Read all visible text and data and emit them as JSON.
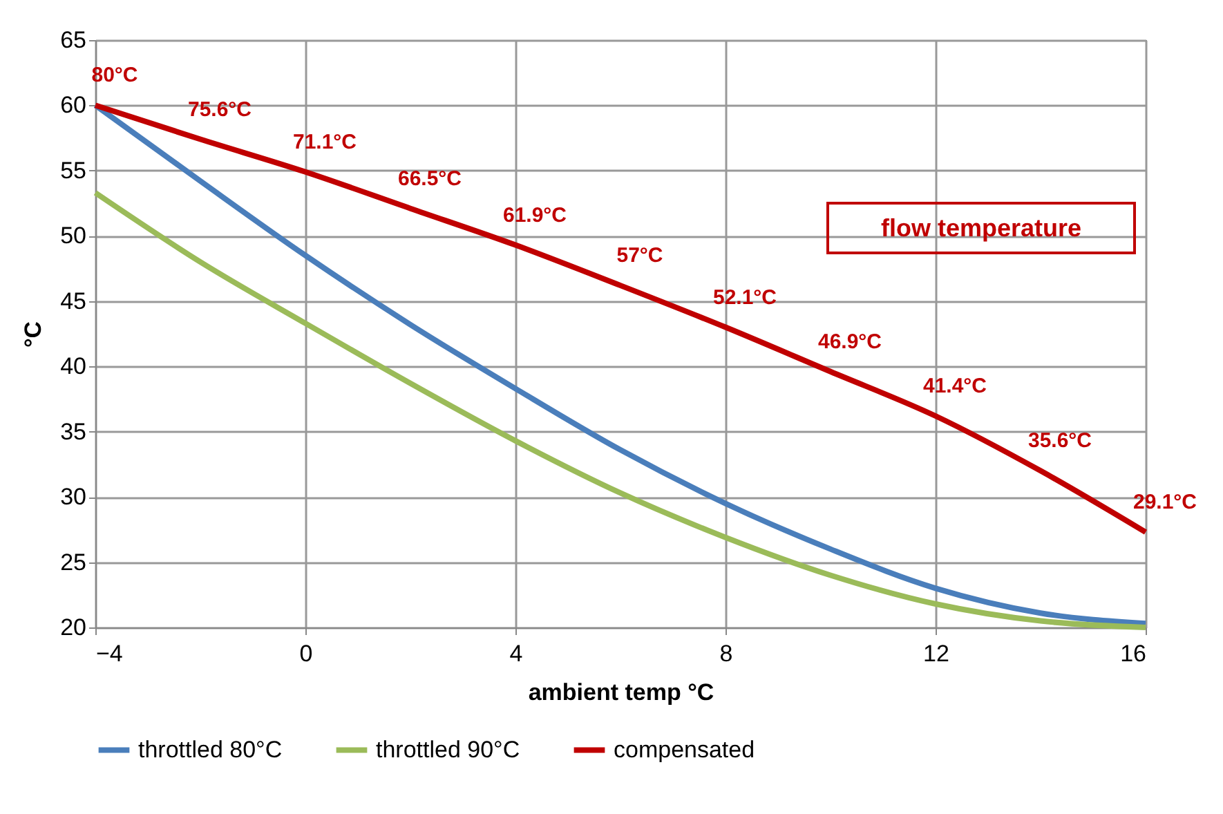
{
  "chart_data": {
    "type": "line",
    "xlabel": "ambient temp °C",
    "ylabel": "°C",
    "x": [
      -4,
      -2,
      0,
      2,
      4,
      6,
      8,
      10,
      12,
      14,
      16
    ],
    "series": [
      {
        "name": "throttled 80°C",
        "color": "#4a7ebb",
        "values": [
          60,
          54.2,
          48.5,
          43.2,
          38.3,
          33.6,
          29.5,
          26.0,
          23.0,
          21.1,
          20.3
        ]
      },
      {
        "name": "throttled 90°C",
        "color": "#9bbb59",
        "values": [
          53.3,
          48.0,
          43.3,
          38.7,
          34.3,
          30.3,
          26.9,
          24.0,
          21.8,
          20.5,
          20.0
        ]
      },
      {
        "name": "compensated",
        "color": "#c00000",
        "values": [
          60,
          57.4,
          54.9,
          52.1,
          49.3,
          46.2,
          43.0,
          39.6,
          36.2,
          32.0,
          27.3
        ]
      }
    ],
    "xlim": [
      -4,
      16
    ],
    "xticks": [
      -4,
      0,
      4,
      8,
      12,
      16
    ],
    "ylim": [
      20,
      65
    ],
    "yticks": [
      20,
      25,
      30,
      35,
      40,
      45,
      50,
      55,
      60,
      65
    ],
    "grid": true,
    "legend": "bottom",
    "marker": "none",
    "line_style": "solid",
    "annotations": [
      {
        "text": "80°C",
        "x": -4,
        "y": 60
      },
      {
        "text": "75.6°C",
        "x": -2,
        "y": 57.4
      },
      {
        "text": "71.1°C",
        "x": 0,
        "y": 54.9
      },
      {
        "text": "66.5°C",
        "x": 2,
        "y": 52.1
      },
      {
        "text": "61.9°C",
        "x": 4,
        "y": 49.3
      },
      {
        "text": "57°C",
        "x": 6,
        "y": 46.2
      },
      {
        "text": "52.1°C",
        "x": 8,
        "y": 43.0
      },
      {
        "text": "46.9°C",
        "x": 10,
        "y": 39.6
      },
      {
        "text": "41.4°C",
        "x": 12,
        "y": 36.2
      },
      {
        "text": "35.6°C",
        "x": 14,
        "y": 32.0
      },
      {
        "text": "29.1°C",
        "x": 16,
        "y": 27.3
      },
      "flow temperature"
    ]
  }
}
